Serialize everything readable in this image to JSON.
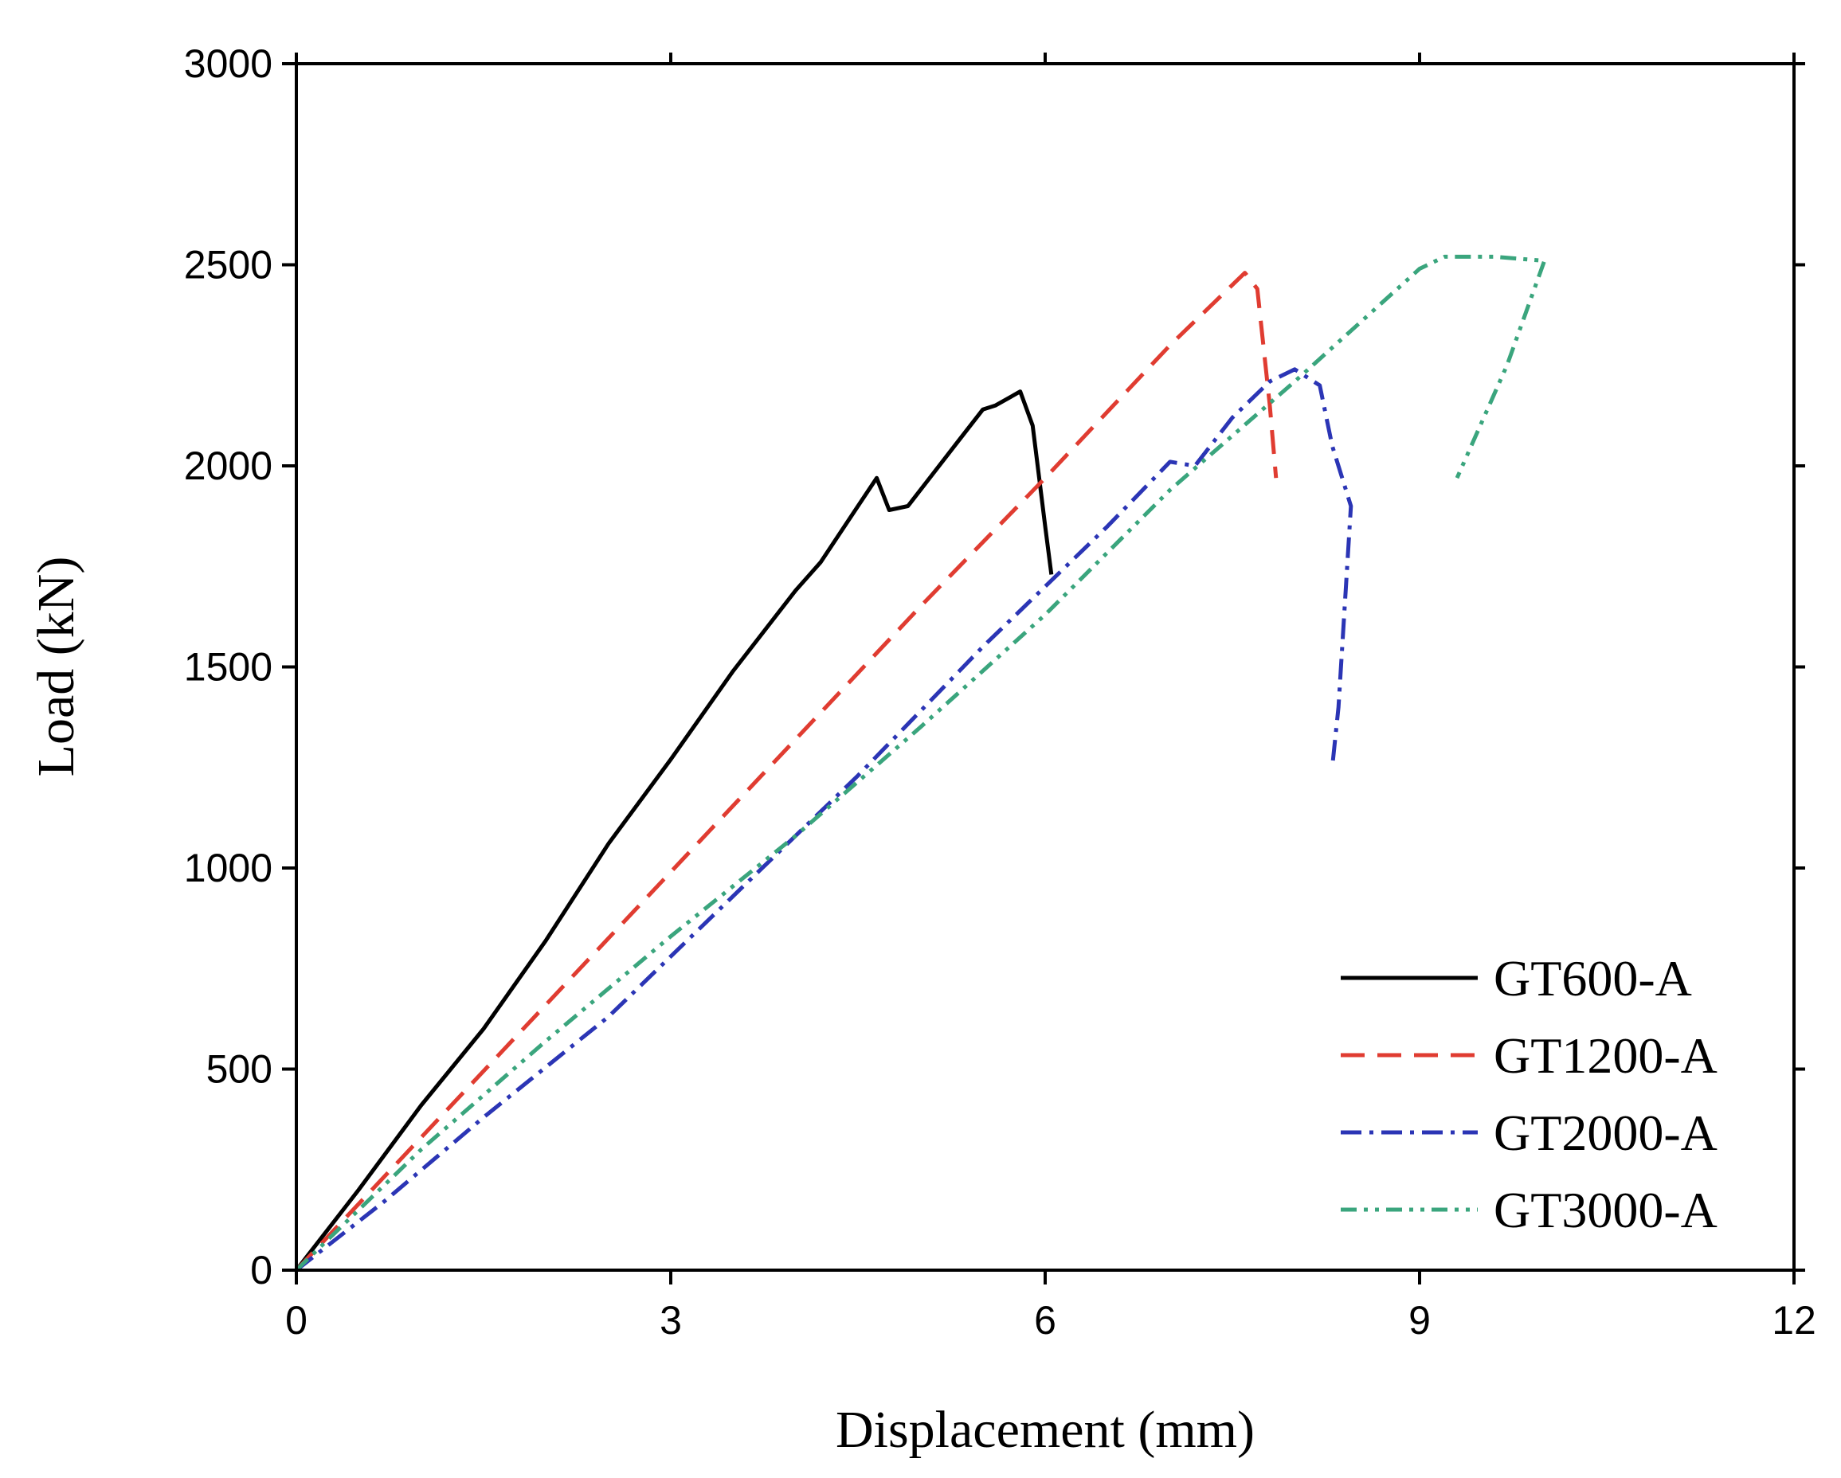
{
  "chart_data": {
    "type": "line",
    "title": "",
    "xlabel": "Displacement (mm)",
    "ylabel": "Load (kN)",
    "xlim": [
      0,
      12
    ],
    "ylim": [
      0,
      3000
    ],
    "xticks": [
      0,
      3,
      6,
      9,
      12
    ],
    "yticks": [
      0,
      500,
      1000,
      1500,
      2000,
      2500,
      3000
    ],
    "xtick_labels": [
      "0",
      "3",
      "6",
      "9",
      "12"
    ],
    "ytick_labels": [
      "0",
      "500",
      "1000",
      "1500",
      "2000",
      "2500",
      "3000"
    ],
    "grid": false,
    "legend_position": "bottom-right",
    "series": [
      {
        "name": "GT600-A",
        "color": "#000000",
        "style": "solid",
        "x": [
          0,
          0.5,
          1.0,
          1.5,
          2.0,
          2.5,
          3.0,
          3.5,
          4.0,
          4.2,
          4.5,
          4.65,
          4.75,
          4.9,
          5.1,
          5.3,
          5.5,
          5.6,
          5.8,
          5.9,
          6.0,
          6.05
        ],
        "y": [
          0,
          200,
          410,
          600,
          820,
          1060,
          1270,
          1490,
          1690,
          1760,
          1900,
          1970,
          1890,
          1900,
          1980,
          2060,
          2140,
          2150,
          2185,
          2100,
          1850,
          1730
        ]
      },
      {
        "name": "GT1200-A",
        "color": "#e03c31",
        "style": "dashed",
        "x": [
          0,
          1.0,
          2.0,
          3.0,
          4.0,
          5.0,
          6.0,
          7.0,
          7.6,
          7.7,
          7.8,
          7.85
        ],
        "y": [
          0,
          330,
          660,
          990,
          1320,
          1650,
          1970,
          2300,
          2480,
          2440,
          2150,
          1970
        ]
      },
      {
        "name": "GT2000-A",
        "color": "#2b35b5",
        "style": "dashdot",
        "x": [
          0,
          0.7,
          1.5,
          2.5,
          3.5,
          4.5,
          5.5,
          6.0,
          6.5,
          7.0,
          7.2,
          7.5,
          7.8,
          8.0,
          8.2,
          8.3,
          8.45,
          8.4,
          8.35,
          8.3
        ],
        "y": [
          0,
          170,
          380,
          630,
          930,
          1230,
          1550,
          1700,
          1850,
          2010,
          2000,
          2120,
          2210,
          2240,
          2200,
          2050,
          1900,
          1650,
          1400,
          1250
        ]
      },
      {
        "name": "GT3000-A",
        "color": "#3aa57d",
        "style": "dashdotdot",
        "x": [
          0,
          1.0,
          2.0,
          3.0,
          4.0,
          5.0,
          6.0,
          7.0,
          8.0,
          8.5,
          9.0,
          9.2,
          9.6,
          10.0,
          9.7,
          9.3
        ],
        "y": [
          0,
          300,
          570,
          830,
          1080,
          1350,
          1630,
          1940,
          2210,
          2350,
          2490,
          2520,
          2520,
          2510,
          2250,
          1970
        ]
      }
    ]
  }
}
